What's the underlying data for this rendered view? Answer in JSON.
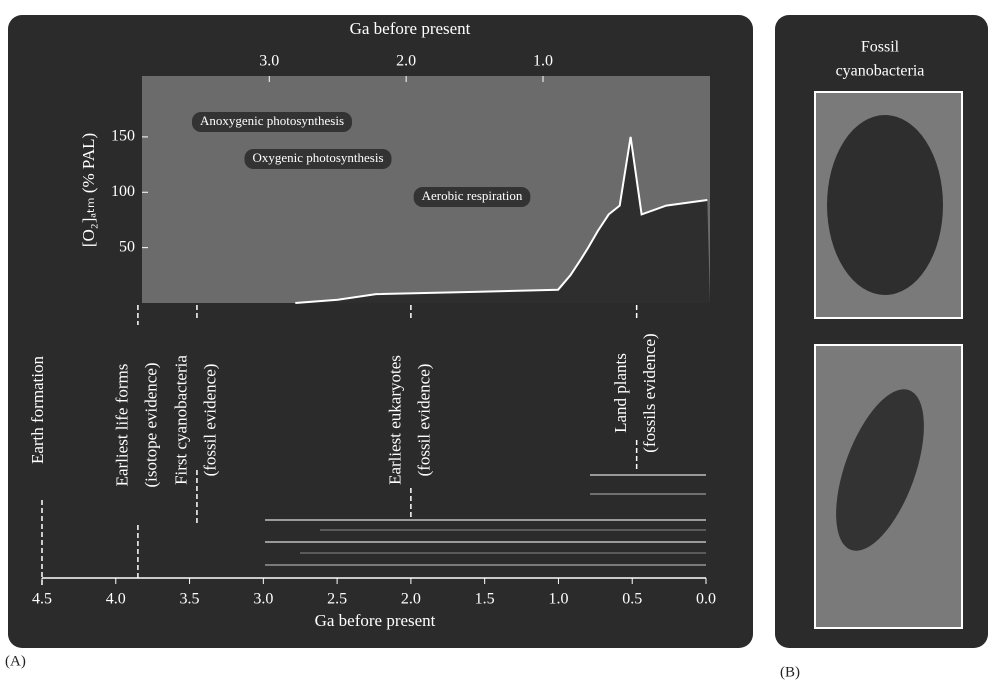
{
  "chart_data": [
    {
      "type": "line",
      "xlabel": "Ga before present",
      "ylabel": "[O₂]ₐₜₘ (% PAL)",
      "x": [
        2.81,
        2.5,
        2.22,
        1.5,
        0.89,
        0.8,
        0.72,
        0.67,
        0.6,
        0.52,
        0.44,
        0.36,
        0.28,
        0.1,
        -0.2
      ],
      "values": [
        0,
        3,
        8,
        10,
        12,
        25,
        40,
        50,
        65,
        80,
        88,
        150,
        80,
        88,
        93
      ],
      "color": "#ffffff",
      "xlim": [
        3.93,
        -0.22
      ],
      "xticks": [
        {
          "value": 3,
          "label": "3.0"
        },
        {
          "value": 2,
          "label": "2.0"
        },
        {
          "value": 1,
          "label": "1.0"
        }
      ],
      "ylim": [
        0,
        205
      ],
      "yticks": [
        50,
        100,
        150
      ],
      "annotations": [
        "Anoxygenic photosynthesis",
        "Oxygenic photosynthesis",
        "Aerobic respiration"
      ]
    },
    {
      "type": "timeline",
      "xlabel": "Ga before present",
      "xlim": [
        4.5,
        0
      ],
      "xticks": [
        4.5,
        {
          "value": 4,
          "label": "4.0"
        },
        3.5,
        {
          "value": 3,
          "label": "3.0"
        },
        2.5,
        {
          "value": 2,
          "label": "2.0"
        },
        1.5,
        {
          "value": 1,
          "label": "1.0"
        },
        0.5,
        {
          "value": 0,
          "label": "0.0"
        }
      ],
      "events": [
        {
          "x": 4.5,
          "label": [
            "Earth formation"
          ]
        },
        {
          "x": 3.85,
          "label": [
            "Earliest life forms",
            "(isotope evidence)"
          ]
        },
        {
          "x": 3.45,
          "label": [
            "First cyanobacteria",
            "(fossil evidence)"
          ]
        },
        {
          "x": 2.0,
          "label": [
            "Earliest eukaryotes",
            "(fossil evidence)"
          ]
        },
        {
          "x": 0.47,
          "label": [
            "Land plants",
            "(fossils evidence)"
          ]
        }
      ]
    }
  ],
  "panel_labels": [
    "(A)",
    "(B)"
  ],
  "panel_b_title": [
    "Fossil",
    "cyanobacteria"
  ]
}
